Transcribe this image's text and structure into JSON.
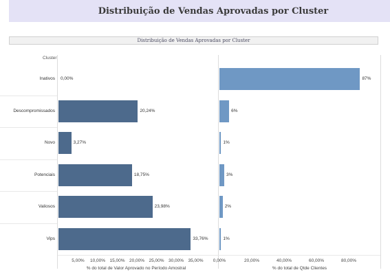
{
  "header": {
    "title": "Distribuição de Vendas Aprovadas por Cluster"
  },
  "chart_data": {
    "type": "bar",
    "orientation": "horizontal",
    "title": "Distribuição de Vendas Aprovadas por Cluster",
    "category_header": "Cluster",
    "categories": [
      "Inativos",
      "Descompromissados",
      "Novo",
      "Potenciais",
      "Valiosos",
      "Vips"
    ],
    "panels": [
      {
        "name": "valor",
        "xlabel": "% do total de Valor Aprovado no Período Amostral",
        "xlim": [
          0,
          40
        ],
        "ticks": [
          "5,00%",
          "10,00%",
          "15,00%",
          "20,00%",
          "25,00%",
          "30,00%",
          "35,00%"
        ],
        "tick_values": [
          5,
          10,
          15,
          20,
          25,
          30,
          35
        ],
        "values": [
          0.0,
          20.24,
          3.27,
          18.75,
          23.98,
          33.76
        ],
        "labels": [
          "0,00%",
          "20,24%",
          "3,27%",
          "18,75%",
          "23,98%",
          "33,76%"
        ],
        "color": "#4d6a8c"
      },
      {
        "name": "clientes",
        "xlabel": "% do total de Qtde Clientes",
        "xlim": [
          0,
          100
        ],
        "ticks": [
          "0,00%",
          "20,00%",
          "40,00%",
          "60,00%",
          "80,00%"
        ],
        "tick_values": [
          0,
          20,
          40,
          60,
          80
        ],
        "values": [
          87,
          6,
          1,
          3,
          2,
          1
        ],
        "labels": [
          "87%",
          "6%",
          "1%",
          "3%",
          "2%",
          "1%"
        ],
        "color": "#6f98c4"
      }
    ]
  }
}
